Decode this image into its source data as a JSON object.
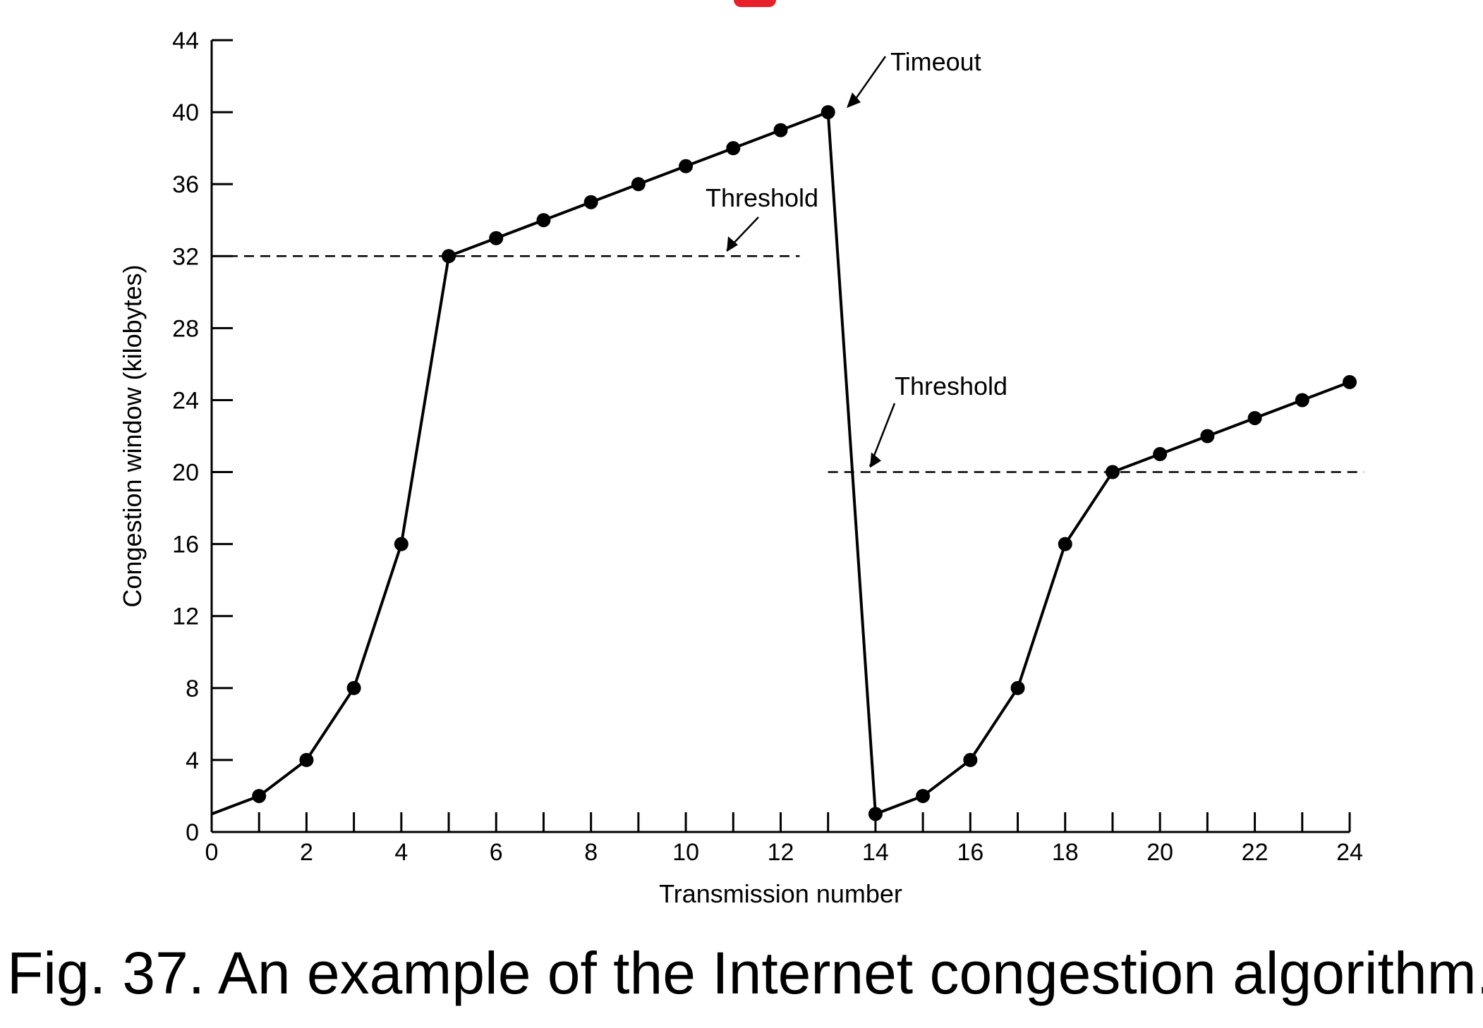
{
  "caption": "Fig. 37. An example of the Internet congestion algorithm.",
  "colors": {
    "line": "#000000",
    "accent": "#e8202a"
  },
  "chart_data": {
    "type": "line",
    "title": "",
    "xlabel": "Transmission number",
    "ylabel": "Congestion window (kilobytes)",
    "xlim": [
      0,
      24
    ],
    "ylim": [
      0,
      44
    ],
    "xticks": [
      0,
      2,
      4,
      6,
      8,
      10,
      12,
      14,
      16,
      18,
      20,
      22,
      24
    ],
    "yticks": [
      0,
      4,
      8,
      12,
      16,
      20,
      24,
      28,
      32,
      36,
      40,
      44
    ],
    "grid": false,
    "series": [
      {
        "x": [
          0,
          1,
          2,
          3,
          4,
          5,
          6,
          7,
          8,
          9,
          10,
          11,
          12,
          13,
          14,
          15,
          16,
          17,
          18,
          19,
          20,
          21,
          22,
          23,
          24
        ],
        "y": [
          1,
          2,
          4,
          8,
          16,
          32,
          33,
          34,
          35,
          36,
          37,
          38,
          39,
          40,
          1,
          2,
          4,
          8,
          16,
          20,
          21,
          22,
          23,
          24,
          25
        ]
      }
    ],
    "thresholds": [
      {
        "label": "Threshold",
        "y": 32,
        "x_start": 0,
        "x_end": 12.4
      },
      {
        "label": "Threshold",
        "y": 20,
        "x_start": 13,
        "x_end": 24.3
      }
    ],
    "annotations": [
      {
        "label": "Timeout",
        "x": 13
      }
    ]
  }
}
